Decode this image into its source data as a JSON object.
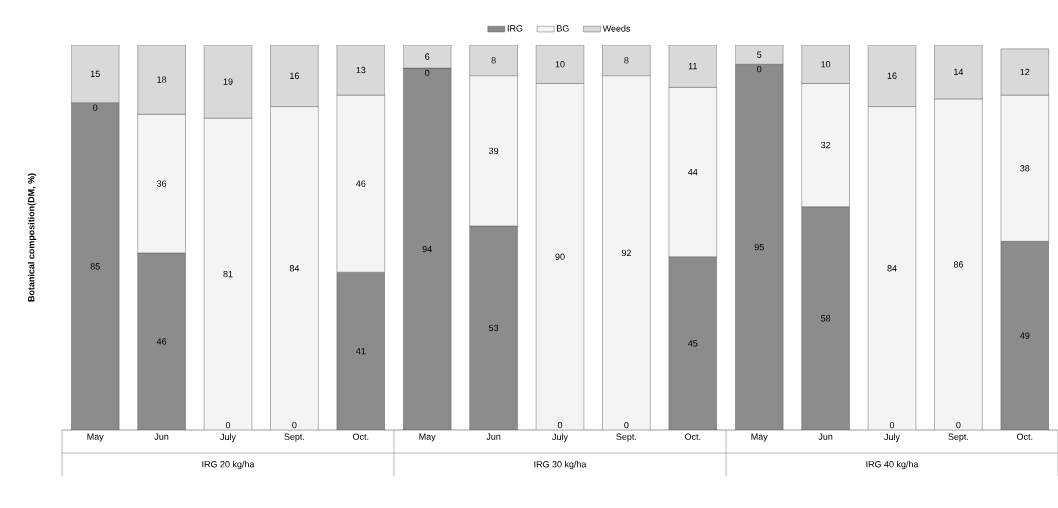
{
  "chart_data": {
    "type": "bar",
    "stacked": true,
    "ylabel": "Botanical composition(DM, %)",
    "categories": [
      "May",
      "Jun",
      "July",
      "Sept.",
      "Oct.",
      "May",
      "Jun",
      "July",
      "Sept.",
      "Oct.",
      "May",
      "Jun",
      "July",
      "Sept.",
      "Oct."
    ],
    "annotations": [
      "0",
      "0",
      "0",
      "0",
      "0",
      "0",
      "0",
      "0",
      "0",
      "IRG 20 kg/ha",
      "IRG 30 kg/ha",
      "IRG 40 kg/ha"
    ],
    "series": [
      {
        "name": "IRG",
        "color": "#8c8c8c",
        "values": [
          85,
          46,
          null,
          null,
          41,
          94,
          53,
          null,
          null,
          45,
          95,
          58,
          null,
          null,
          49
        ]
      },
      {
        "name": "BG",
        "color": "#f4f4f4",
        "values": [
          null,
          36,
          81,
          84,
          46,
          null,
          39,
          90,
          92,
          44,
          null,
          32,
          84,
          86,
          38
        ]
      },
      {
        "name": "Weeds",
        "color": "#d9d9d9",
        "values": [
          15,
          18,
          19,
          16,
          13,
          6,
          8,
          10,
          8,
          11,
          5,
          10,
          16,
          14,
          12
        ]
      }
    ],
    "data_labels": true,
    "legend": "top",
    "tick_labels": "x"
  }
}
